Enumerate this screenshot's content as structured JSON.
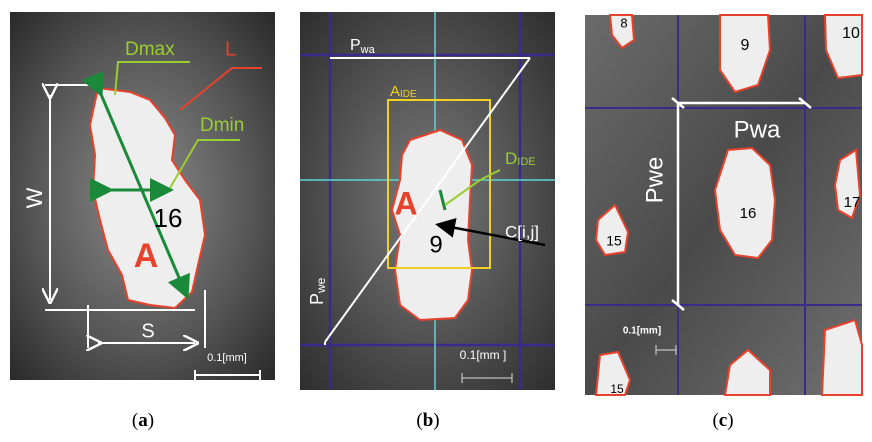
{
  "panels": [
    {
      "caption": "(a)",
      "dmax": "Dmax",
      "l": "L",
      "dmin": "Dmin",
      "w": "W",
      "number": "16",
      "area": "A",
      "s": "S",
      "scale": "0.1[mm]"
    },
    {
      "caption": "(b)",
      "pwa": {
        "main": "P",
        "sub": "wa"
      },
      "aide": {
        "main": "A",
        "sub": "IDE"
      },
      "dide": {
        "main": "D",
        "sub": "IDE"
      },
      "area": "A",
      "number": "9",
      "center": "C[i,j]",
      "pwe": {
        "main": "P",
        "sub": "we"
      },
      "scale": "0.1[mm ]"
    },
    {
      "caption": "(c)",
      "numbers": [
        "8",
        "9",
        "10",
        "16",
        "17",
        "15",
        "15"
      ],
      "pwe": "Pwe",
      "pwa": "Pwa",
      "scale": "0.1[mm]"
    }
  ]
}
